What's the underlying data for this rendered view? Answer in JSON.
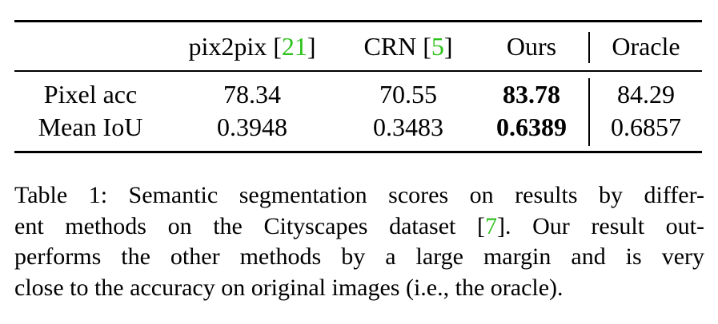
{
  "table": {
    "headers": [
      {
        "label": "pix2pix [",
        "cite": "21",
        "close": "]"
      },
      {
        "label": "CRN [",
        "cite": "5",
        "close": "]"
      },
      {
        "label": "Ours",
        "cite": "",
        "close": ""
      },
      {
        "label": "Oracle",
        "cite": "",
        "close": ""
      }
    ],
    "rows": [
      {
        "label": "Pixel acc",
        "values": [
          "78.34",
          "70.55",
          "83.78",
          "84.29"
        ]
      },
      {
        "label": "Mean IoU",
        "values": [
          "0.3948",
          "0.3483",
          "0.6389",
          "0.6857"
        ]
      }
    ],
    "bold_column": 2,
    "cite_color": "#2ec21c"
  },
  "caption": {
    "line1": "Table 1: Semantic segmentation scores on results by differ-",
    "line2_a": "ent methods on the Cityscapes dataset [",
    "line2_cite": "7",
    "line2_b": "]. Our result out-",
    "line3": "performs the other methods by a large margin and is very",
    "line4": "close to the accuracy on original images (i.e., the oracle)."
  }
}
